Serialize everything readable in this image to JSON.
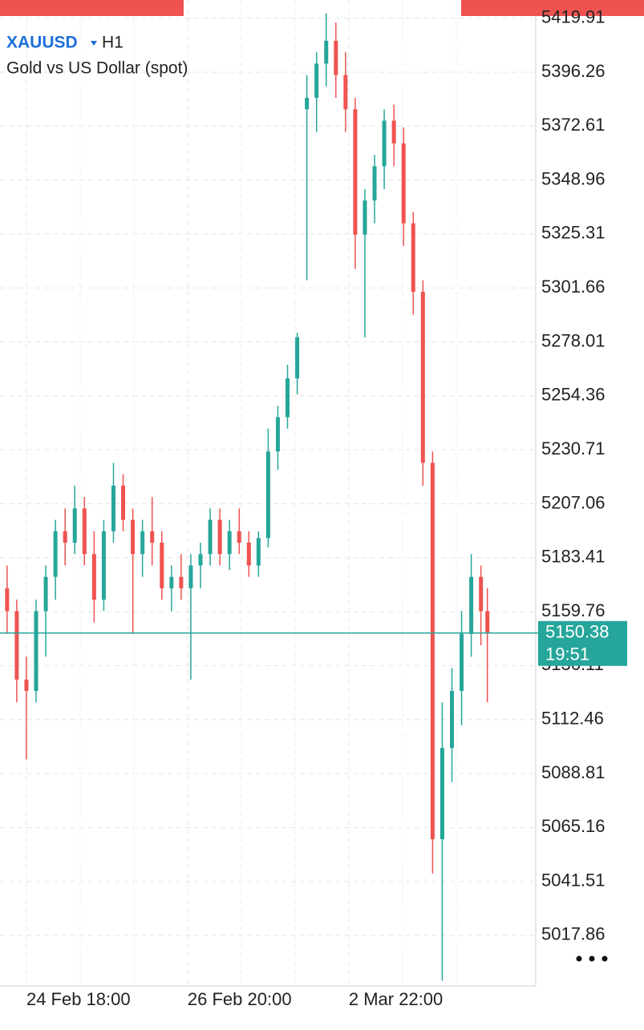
{
  "chart_data": {
    "type": "candlestick",
    "symbol": "XAUUSD",
    "timeframe": "H1",
    "subtitle": "Gold vs US Dollar (spot)",
    "x": [
      -6,
      -3,
      0,
      3,
      6,
      9,
      12,
      15,
      18,
      21,
      24,
      27,
      30,
      33,
      36,
      39,
      42,
      45,
      48,
      51,
      54,
      57,
      60,
      63,
      66,
      69,
      72,
      75,
      78,
      81,
      84,
      87,
      90,
      93,
      96,
      99,
      102,
      105,
      108,
      111,
      114,
      117,
      120,
      123,
      126,
      129,
      132,
      135,
      138,
      141,
      143
    ],
    "open": [
      5170,
      5160,
      5130,
      5125,
      5160,
      5175,
      5195,
      5190,
      5205,
      5185,
      5165,
      5195,
      5215,
      5200,
      5185,
      5195,
      5190,
      5170,
      5175,
      5170,
      5180,
      5185,
      5200,
      5185,
      5195,
      5190,
      5180,
      5192,
      5230,
      5245,
      5262,
      5380,
      5385,
      5400,
      5410,
      5395,
      5380,
      5325,
      5340,
      5355,
      5375,
      5365,
      5330,
      5300,
      5225,
      5060,
      5100,
      5125,
      5150,
      5175,
      5160
    ],
    "high": [
      5180,
      5165,
      5140,
      5165,
      5180,
      5200,
      5205,
      5215,
      5210,
      5195,
      5200,
      5225,
      5220,
      5205,
      5200,
      5210,
      5195,
      5180,
      5185,
      5185,
      5190,
      5205,
      5205,
      5200,
      5205,
      5195,
      5195,
      5240,
      5250,
      5268,
      5282,
      5395,
      5405,
      5422,
      5418,
      5405,
      5385,
      5345,
      5360,
      5380,
      5382,
      5372,
      5335,
      5305,
      5230,
      5120,
      5135,
      5160,
      5185,
      5180,
      5170
    ],
    "low": [
      5150,
      5120,
      5095,
      5120,
      5140,
      5165,
      5180,
      5185,
      5180,
      5155,
      5160,
      5190,
      5195,
      5150,
      5175,
      5180,
      5165,
      5160,
      5165,
      5130,
      5170,
      5180,
      5180,
      5178,
      5185,
      5175,
      5175,
      5188,
      5222,
      5240,
      5255,
      5305,
      5370,
      5390,
      5385,
      5370,
      5310,
      5280,
      5330,
      5345,
      5355,
      5320,
      5290,
      5215,
      5045,
      4998,
      5085,
      5110,
      5140,
      5145,
      5120
    ],
    "close": [
      5160,
      5130,
      5125,
      5160,
      5175,
      5195,
      5190,
      5205,
      5185,
      5165,
      5195,
      5215,
      5200,
      5185,
      5195,
      5190,
      5170,
      5175,
      5170,
      5180,
      5185,
      5200,
      5185,
      5195,
      5190,
      5180,
      5192,
      5230,
      5245,
      5262,
      5280,
      5385,
      5400,
      5410,
      5395,
      5380,
      5325,
      5340,
      5355,
      5375,
      5365,
      5330,
      5300,
      5225,
      5060,
      5100,
      5125,
      5150,
      5175,
      5160,
      5150.38
    ],
    "up_color": "#26a69a",
    "down_color": "#ef5350",
    "last_price": 5150.38,
    "countdown": "19:51",
    "ylim": [
      4995.7,
      5427.88
    ],
    "yticks": [
      5419.91,
      5396.26,
      5372.61,
      5348.96,
      5325.31,
      5301.66,
      5278.01,
      5254.36,
      5230.71,
      5207.06,
      5183.41,
      5159.76,
      5136.11,
      5112.46,
      5088.81,
      5065.16,
      5041.51,
      5017.86
    ],
    "xlim": [
      -8.2,
      158
    ],
    "xticks": [
      {
        "value": 0,
        "label": "24 Feb 18:00"
      },
      {
        "value": 50,
        "label": "26 Feb 20:00"
      },
      {
        "value": 100,
        "label": "2 Mar 22:00"
      }
    ],
    "grid": true
  }
}
